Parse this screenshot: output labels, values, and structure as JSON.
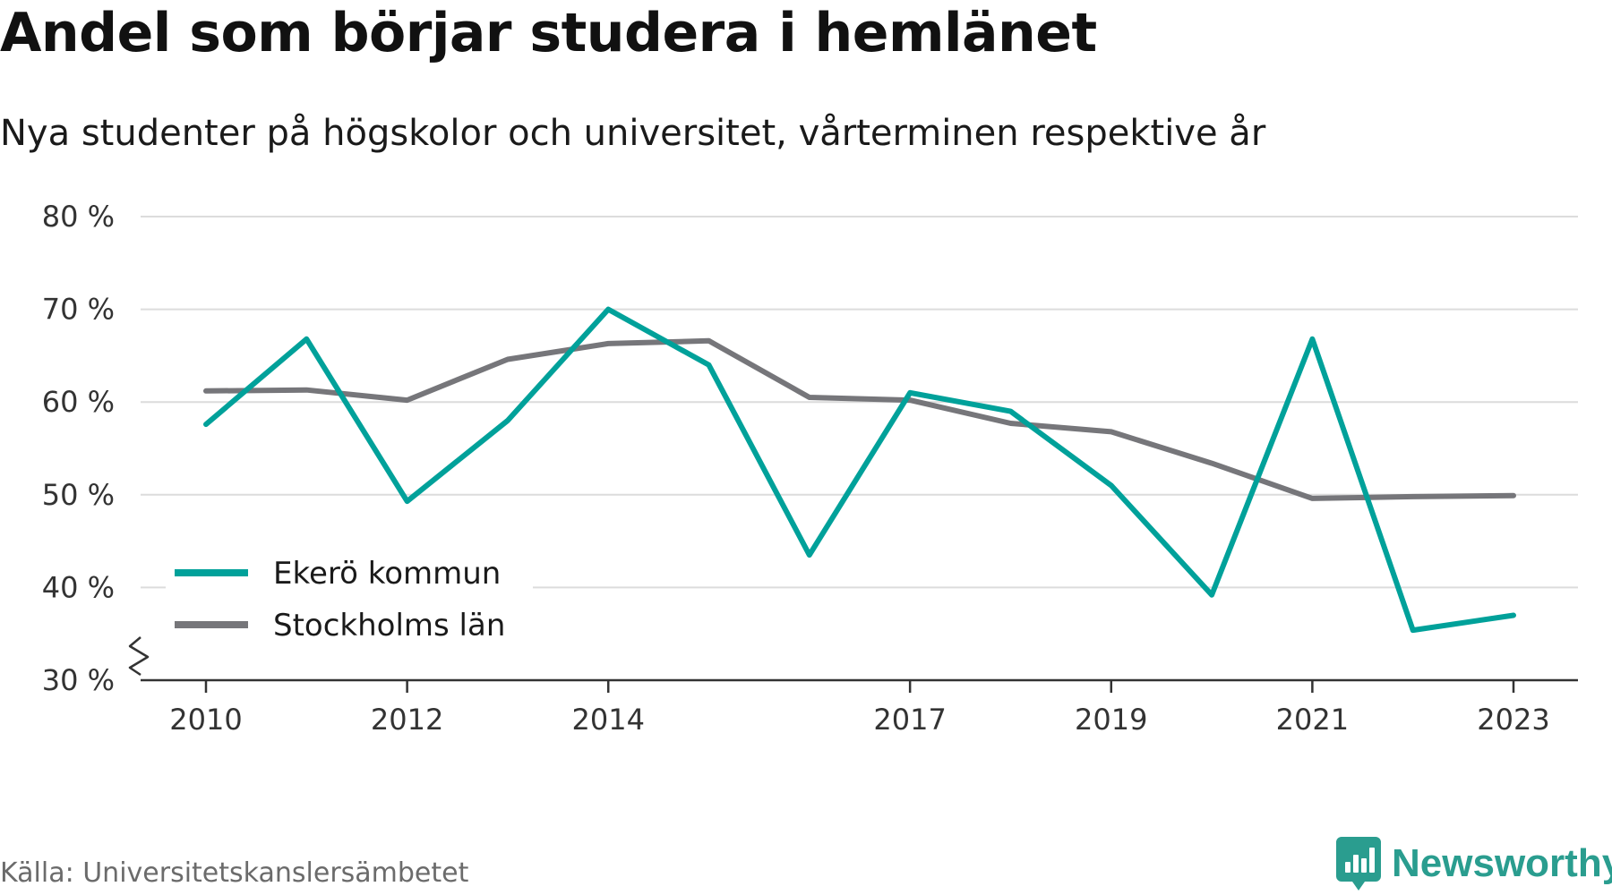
{
  "title": "Andel som börjar studera i hemlänet",
  "subtitle": "Nya studenter på högskolor och universitet, vårterminen respektive år",
  "source": "Källa: Universitetskanslersämbetet",
  "brand": {
    "name": "Newsworthy",
    "icon": "newsworthy-logo-icon",
    "color": "#2a9d8f"
  },
  "chart_data": {
    "type": "line",
    "title": "Andel som börjar studera i hemlänet",
    "subtitle": "Nya studenter på högskolor och universitet, vårterminen respektive år",
    "x": [
      2010,
      2011,
      2012,
      2013,
      2014,
      2015,
      2016,
      2017,
      2018,
      2019,
      2020,
      2021,
      2022,
      2023
    ],
    "x_tick_labels": [
      "2010",
      "2012",
      "2014",
      "2017",
      "2019",
      "2021",
      "2023"
    ],
    "y_ticks": [
      30,
      40,
      50,
      60,
      70,
      80
    ],
    "y_tick_labels": [
      "30 %",
      "40 %",
      "50 %",
      "60 %",
      "70 %",
      "80 %"
    ],
    "ylim": [
      30,
      80
    ],
    "y_axis_break": true,
    "grid": true,
    "legend_position": "bottom-left",
    "series": [
      {
        "name": "Ekerö kommun",
        "color": "#00a19a",
        "values": [
          57.6,
          66.8,
          49.3,
          58.0,
          70.0,
          64.0,
          43.5,
          61.0,
          59.0,
          51.0,
          39.2,
          66.8,
          35.4,
          37.0
        ]
      },
      {
        "name": "Stockholms län",
        "color": "#76767a",
        "values": [
          61.2,
          61.3,
          60.2,
          64.6,
          66.3,
          66.6,
          60.5,
          60.2,
          57.7,
          56.8,
          53.4,
          49.6,
          49.8,
          49.9
        ]
      }
    ]
  }
}
